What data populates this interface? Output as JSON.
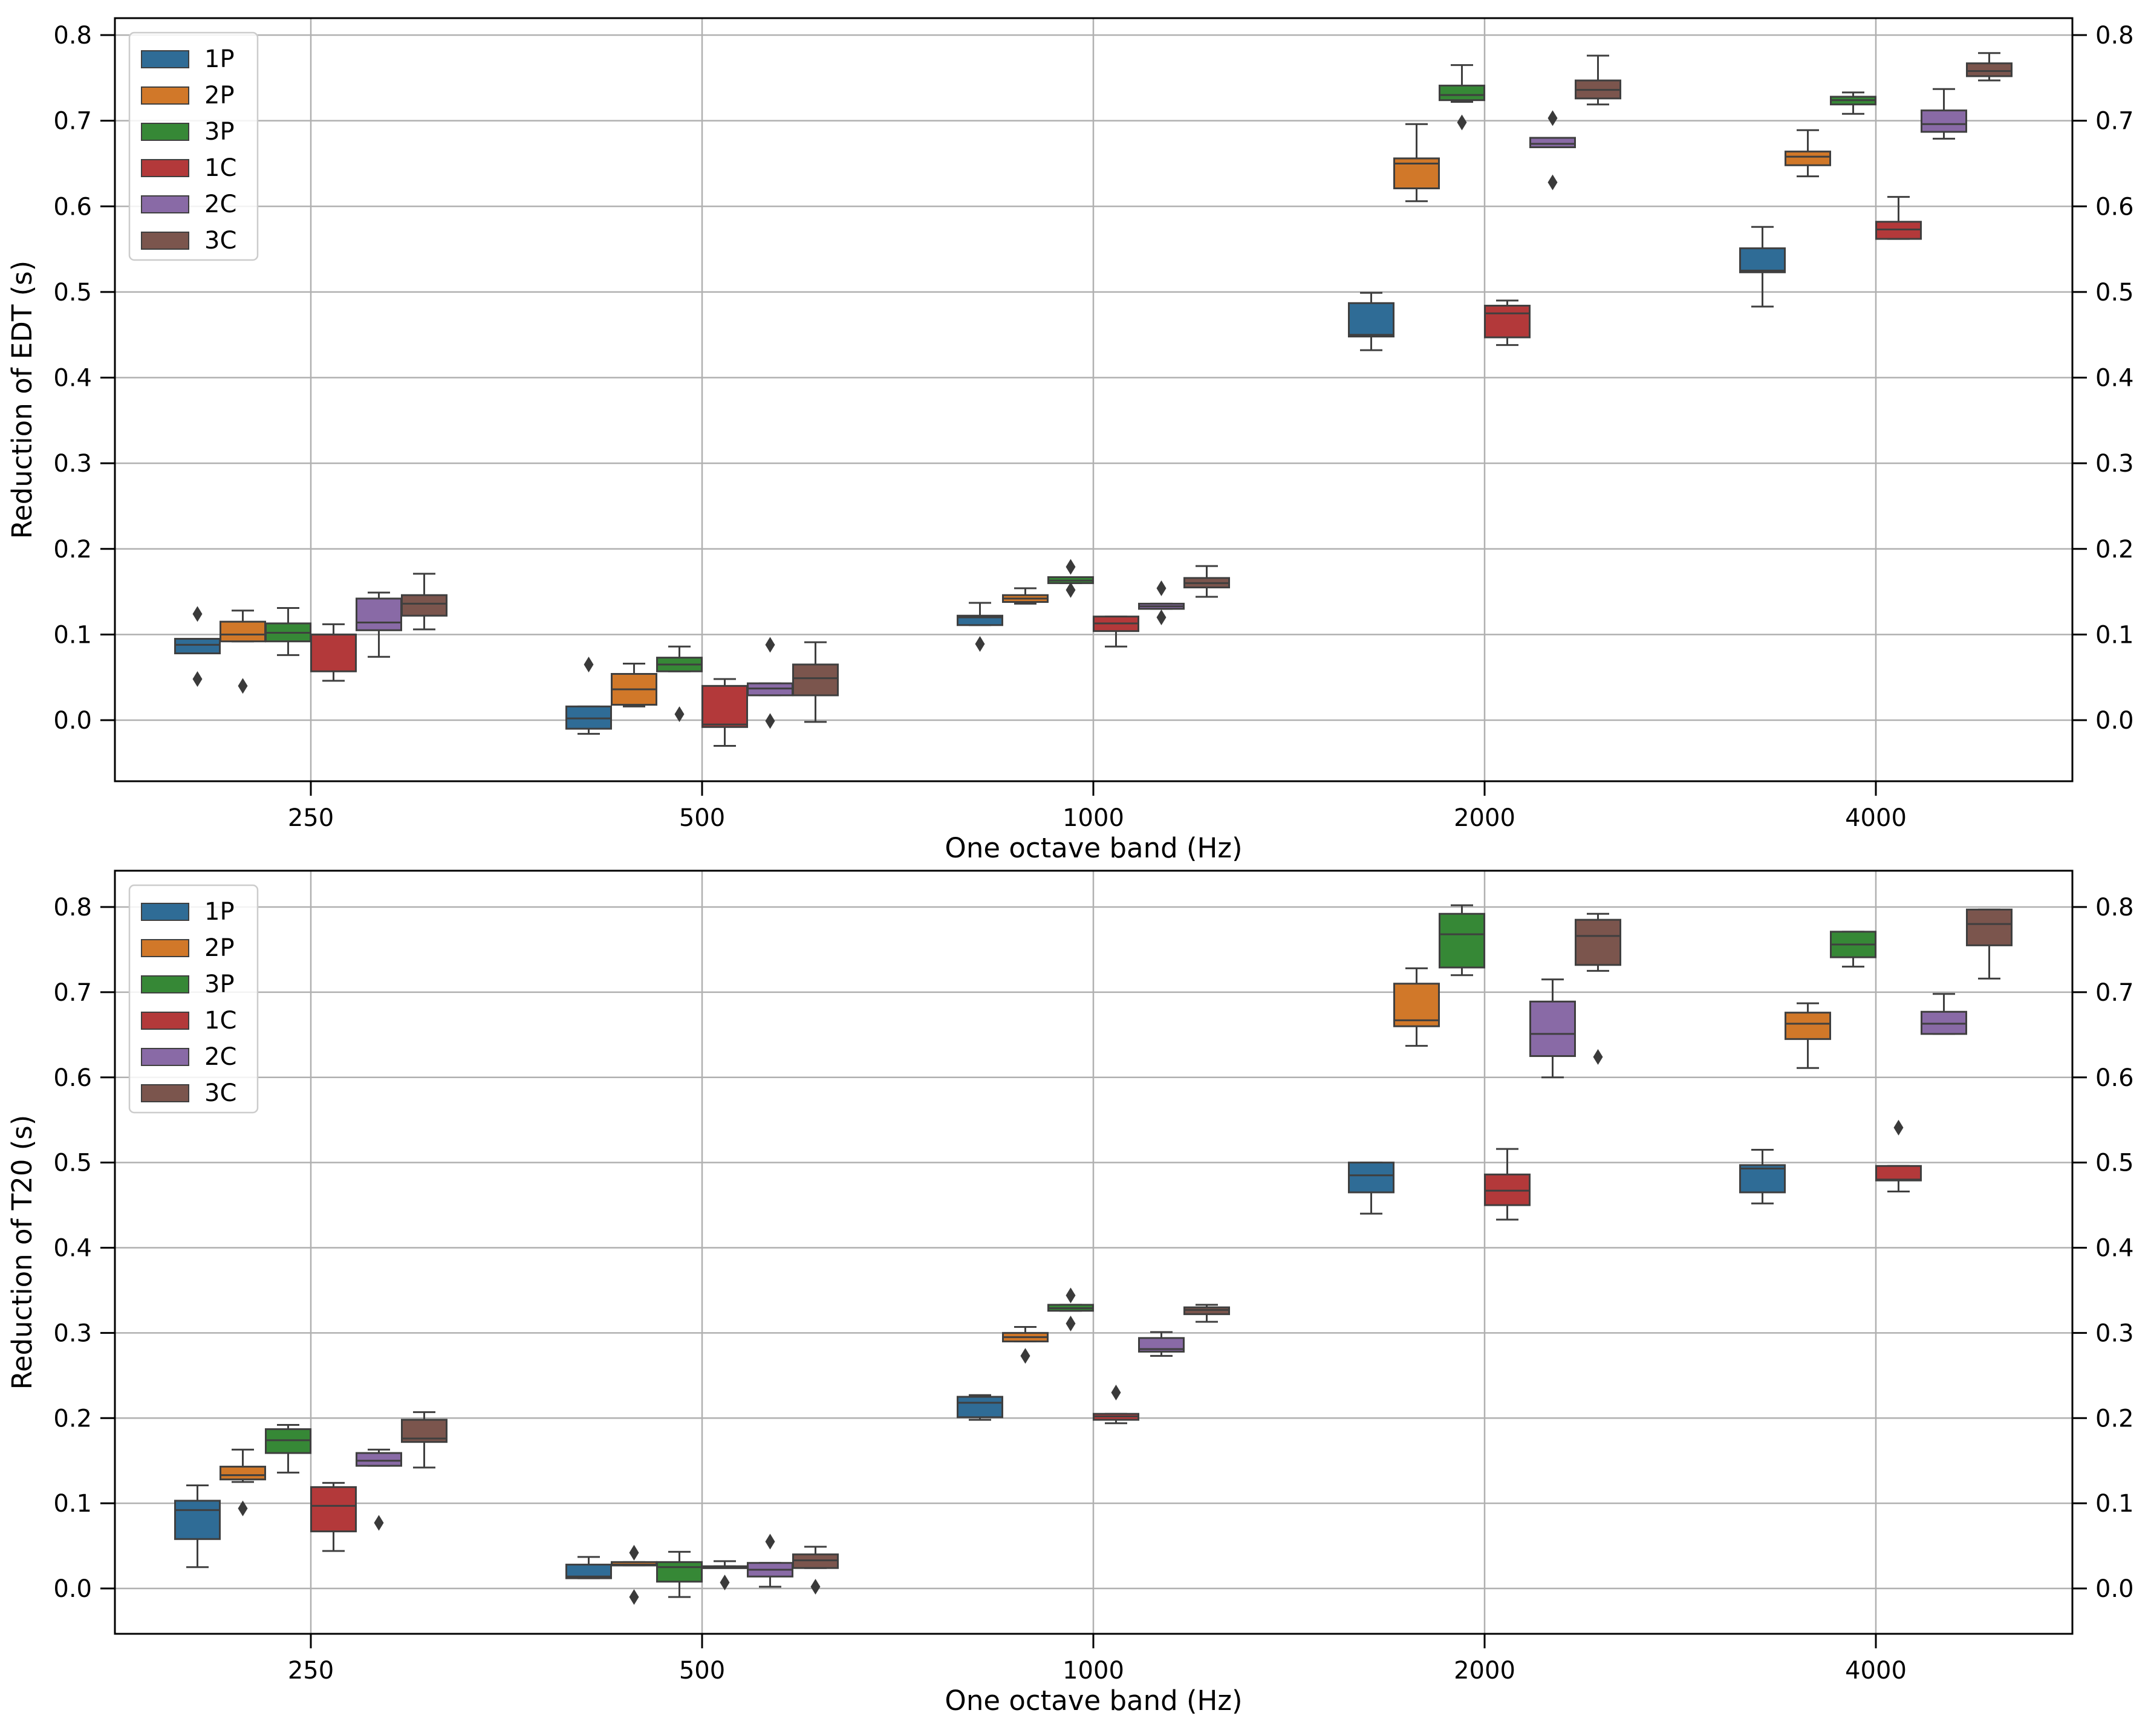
{
  "legend_labels": [
    "1P",
    "2P",
    "3P",
    "1C",
    "2C",
    "3C"
  ],
  "colors": [
    "#3274a1",
    "#e1812c",
    "#3a923a",
    "#c03d3e",
    "#9372b2",
    "#845b53"
  ],
  "chart_data": [
    {
      "type": "box",
      "title": "",
      "xlabel": "One octave band (Hz)",
      "ylabel": "Reduction of EDT (s)",
      "categories": [
        "250",
        "500",
        "1000",
        "2000",
        "4000"
      ],
      "yticks": [
        "0.0",
        "0.1",
        "0.2",
        "0.3",
        "0.4",
        "0.5",
        "0.6",
        "0.7",
        "0.8"
      ],
      "ylim": [
        -0.07,
        0.82
      ],
      "legend": "top-left",
      "grid": true,
      "series": [
        {
          "name": "1P",
          "boxes": [
            {
              "wlo": 0.078,
              "q1": 0.078,
              "med": 0.088,
              "q3": 0.095,
              "whi": 0.095,
              "fliers": [
                0.124,
                0.048
              ]
            },
            {
              "wlo": -0.016,
              "q1": -0.01,
              "med": 0.002,
              "q3": 0.016,
              "whi": 0.016,
              "fliers": [
                0.065
              ]
            },
            {
              "wlo": 0.111,
              "q1": 0.111,
              "med": 0.12,
              "q3": 0.122,
              "whi": 0.137,
              "fliers": [
                0.089
              ]
            },
            {
              "wlo": 0.432,
              "q1": 0.448,
              "med": 0.45,
              "q3": 0.487,
              "whi": 0.499,
              "fliers": []
            },
            {
              "wlo": 0.483,
              "q1": 0.523,
              "med": 0.525,
              "q3": 0.551,
              "whi": 0.576,
              "fliers": []
            }
          ]
        },
        {
          "name": "2P",
          "boxes": [
            {
              "wlo": 0.092,
              "q1": 0.092,
              "med": 0.1,
              "q3": 0.115,
              "whi": 0.128,
              "fliers": [
                0.04
              ]
            },
            {
              "wlo": 0.016,
              "q1": 0.018,
              "med": 0.036,
              "q3": 0.054,
              "whi": 0.066,
              "fliers": []
            },
            {
              "wlo": 0.136,
              "q1": 0.138,
              "med": 0.142,
              "q3": 0.146,
              "whi": 0.154,
              "fliers": []
            },
            {
              "wlo": 0.606,
              "q1": 0.621,
              "med": 0.65,
              "q3": 0.656,
              "whi": 0.696,
              "fliers": []
            },
            {
              "wlo": 0.635,
              "q1": 0.648,
              "med": 0.658,
              "q3": 0.664,
              "whi": 0.689,
              "fliers": []
            }
          ]
        },
        {
          "name": "3P",
          "boxes": [
            {
              "wlo": 0.076,
              "q1": 0.092,
              "med": 0.102,
              "q3": 0.113,
              "whi": 0.131,
              "fliers": []
            },
            {
              "wlo": 0.057,
              "q1": 0.057,
              "med": 0.065,
              "q3": 0.073,
              "whi": 0.086,
              "fliers": [
                0.007
              ]
            },
            {
              "wlo": 0.16,
              "q1": 0.16,
              "med": 0.163,
              "q3": 0.167,
              "whi": 0.167,
              "fliers": [
                0.179,
                0.152
              ]
            },
            {
              "wlo": 0.722,
              "q1": 0.724,
              "med": 0.73,
              "q3": 0.741,
              "whi": 0.765,
              "fliers": [
                0.698
              ]
            },
            {
              "wlo": 0.708,
              "q1": 0.719,
              "med": 0.724,
              "q3": 0.728,
              "whi": 0.733,
              "fliers": []
            }
          ]
        },
        {
          "name": "1C",
          "boxes": [
            {
              "wlo": 0.046,
              "q1": 0.057,
              "med": 0.1,
              "q3": 0.1,
              "whi": 0.112,
              "fliers": []
            },
            {
              "wlo": -0.03,
              "q1": -0.008,
              "med": -0.005,
              "q3": 0.04,
              "whi": 0.048,
              "fliers": []
            },
            {
              "wlo": 0.086,
              "q1": 0.104,
              "med": 0.113,
              "q3": 0.121,
              "whi": 0.121,
              "fliers": []
            },
            {
              "wlo": 0.438,
              "q1": 0.447,
              "med": 0.475,
              "q3": 0.484,
              "whi": 0.49,
              "fliers": []
            },
            {
              "wlo": 0.562,
              "q1": 0.562,
              "med": 0.573,
              "q3": 0.582,
              "whi": 0.611,
              "fliers": []
            }
          ]
        },
        {
          "name": "2C",
          "boxes": [
            {
              "wlo": 0.074,
              "q1": 0.105,
              "med": 0.114,
              "q3": 0.142,
              "whi": 0.149,
              "fliers": []
            },
            {
              "wlo": 0.029,
              "q1": 0.029,
              "med": 0.037,
              "q3": 0.043,
              "whi": 0.043,
              "fliers": [
                0.088,
                -0.001
              ]
            },
            {
              "wlo": 0.13,
              "q1": 0.13,
              "med": 0.133,
              "q3": 0.136,
              "whi": 0.136,
              "fliers": [
                0.154,
                0.12
              ]
            },
            {
              "wlo": 0.669,
              "q1": 0.669,
              "med": 0.673,
              "q3": 0.68,
              "whi": 0.68,
              "fliers": [
                0.703,
                0.628
              ]
            },
            {
              "wlo": 0.679,
              "q1": 0.687,
              "med": 0.696,
              "q3": 0.712,
              "whi": 0.737,
              "fliers": []
            }
          ]
        },
        {
          "name": "3C",
          "boxes": [
            {
              "wlo": 0.106,
              "q1": 0.122,
              "med": 0.136,
              "q3": 0.146,
              "whi": 0.171,
              "fliers": []
            },
            {
              "wlo": -0.002,
              "q1": 0.029,
              "med": 0.049,
              "q3": 0.065,
              "whi": 0.091,
              "fliers": []
            },
            {
              "wlo": 0.144,
              "q1": 0.155,
              "med": 0.16,
              "q3": 0.166,
              "whi": 0.18,
              "fliers": []
            },
            {
              "wlo": 0.719,
              "q1": 0.726,
              "med": 0.736,
              "q3": 0.747,
              "whi": 0.776,
              "fliers": []
            },
            {
              "wlo": 0.747,
              "q1": 0.752,
              "med": 0.758,
              "q3": 0.767,
              "whi": 0.779,
              "fliers": []
            }
          ]
        }
      ]
    },
    {
      "type": "box",
      "title": "",
      "xlabel": "One octave band (Hz)",
      "ylabel": "Reduction of T20 (s)",
      "categories": [
        "250",
        "500",
        "1000",
        "2000",
        "4000"
      ],
      "yticks": [
        "0.0",
        "0.1",
        "0.2",
        "0.3",
        "0.4",
        "0.5",
        "0.6",
        "0.7",
        "0.8"
      ],
      "ylim": [
        -0.05,
        0.84
      ],
      "legend": "top-left",
      "grid": true,
      "series": [
        {
          "name": "1P",
          "boxes": [
            {
              "wlo": 0.025,
              "q1": 0.058,
              "med": 0.092,
              "q3": 0.103,
              "whi": 0.121,
              "fliers": []
            },
            {
              "wlo": 0.012,
              "q1": 0.012,
              "med": 0.014,
              "q3": 0.028,
              "whi": 0.037,
              "fliers": []
            },
            {
              "wlo": 0.198,
              "q1": 0.201,
              "med": 0.218,
              "q3": 0.225,
              "whi": 0.227,
              "fliers": []
            },
            {
              "wlo": 0.44,
              "q1": 0.465,
              "med": 0.485,
              "q3": 0.5,
              "whi": 0.5,
              "fliers": []
            },
            {
              "wlo": 0.452,
              "q1": 0.465,
              "med": 0.493,
              "q3": 0.497,
              "whi": 0.515,
              "fliers": []
            }
          ]
        },
        {
          "name": "2P",
          "boxes": [
            {
              "wlo": 0.125,
              "q1": 0.128,
              "med": 0.133,
              "q3": 0.143,
              "whi": 0.163,
              "fliers": [
                0.094
              ]
            },
            {
              "wlo": 0.027,
              "q1": 0.027,
              "med": 0.028,
              "q3": 0.031,
              "whi": 0.031,
              "fliers": [
                0.042,
                -0.01
              ]
            },
            {
              "wlo": 0.29,
              "q1": 0.29,
              "med": 0.295,
              "q3": 0.3,
              "whi": 0.307,
              "fliers": [
                0.273
              ]
            },
            {
              "wlo": 0.637,
              "q1": 0.66,
              "med": 0.667,
              "q3": 0.71,
              "whi": 0.728,
              "fliers": []
            },
            {
              "wlo": 0.611,
              "q1": 0.645,
              "med": 0.663,
              "q3": 0.676,
              "whi": 0.687,
              "fliers": []
            }
          ]
        },
        {
          "name": "3P",
          "boxes": [
            {
              "wlo": 0.136,
              "q1": 0.159,
              "med": 0.174,
              "q3": 0.187,
              "whi": 0.192,
              "fliers": []
            },
            {
              "wlo": -0.01,
              "q1": 0.008,
              "med": 0.025,
              "q3": 0.031,
              "whi": 0.043,
              "fliers": []
            },
            {
              "wlo": 0.326,
              "q1": 0.326,
              "med": 0.329,
              "q3": 0.333,
              "whi": 0.333,
              "fliers": [
                0.344,
                0.311
              ]
            },
            {
              "wlo": 0.72,
              "q1": 0.729,
              "med": 0.768,
              "q3": 0.792,
              "whi": 0.802,
              "fliers": []
            },
            {
              "wlo": 0.73,
              "q1": 0.741,
              "med": 0.756,
              "q3": 0.771,
              "whi": 0.771,
              "fliers": []
            }
          ]
        },
        {
          "name": "1C",
          "boxes": [
            {
              "wlo": 0.044,
              "q1": 0.067,
              "med": 0.097,
              "q3": 0.119,
              "whi": 0.124,
              "fliers": []
            },
            {
              "wlo": 0.026,
              "q1": 0.026,
              "med": 0.026,
              "q3": 0.026,
              "whi": 0.032,
              "fliers": [
                0.007
              ]
            },
            {
              "wlo": 0.194,
              "q1": 0.198,
              "med": 0.202,
              "q3": 0.205,
              "whi": 0.205,
              "fliers": [
                0.23
              ]
            },
            {
              "wlo": 0.433,
              "q1": 0.45,
              "med": 0.467,
              "q3": 0.486,
              "whi": 0.516,
              "fliers": []
            },
            {
              "wlo": 0.466,
              "q1": 0.479,
              "med": 0.48,
              "q3": 0.496,
              "whi": 0.496,
              "fliers": [
                0.541
              ]
            }
          ]
        },
        {
          "name": "2C",
          "boxes": [
            {
              "wlo": 0.144,
              "q1": 0.144,
              "med": 0.15,
              "q3": 0.159,
              "whi": 0.163,
              "fliers": [
                0.077
              ]
            },
            {
              "wlo": 0.002,
              "q1": 0.014,
              "med": 0.022,
              "q3": 0.03,
              "whi": 0.03,
              "fliers": [
                0.055
              ]
            },
            {
              "wlo": 0.273,
              "q1": 0.278,
              "med": 0.281,
              "q3": 0.294,
              "whi": 0.301,
              "fliers": []
            },
            {
              "wlo": 0.6,
              "q1": 0.625,
              "med": 0.651,
              "q3": 0.689,
              "whi": 0.715,
              "fliers": []
            },
            {
              "wlo": 0.651,
              "q1": 0.651,
              "med": 0.663,
              "q3": 0.677,
              "whi": 0.698,
              "fliers": []
            }
          ]
        },
        {
          "name": "3C",
          "boxes": [
            {
              "wlo": 0.142,
              "q1": 0.172,
              "med": 0.176,
              "q3": 0.198,
              "whi": 0.207,
              "fliers": []
            },
            {
              "wlo": 0.024,
              "q1": 0.024,
              "med": 0.033,
              "q3": 0.04,
              "whi": 0.049,
              "fliers": [
                0.002
              ]
            },
            {
              "wlo": 0.313,
              "q1": 0.322,
              "med": 0.327,
              "q3": 0.33,
              "whi": 0.333,
              "fliers": []
            },
            {
              "wlo": 0.725,
              "q1": 0.732,
              "med": 0.766,
              "q3": 0.785,
              "whi": 0.792,
              "fliers": [
                0.624
              ]
            },
            {
              "wlo": 0.716,
              "q1": 0.755,
              "med": 0.78,
              "q3": 0.797,
              "whi": 0.797,
              "fliers": []
            }
          ]
        }
      ]
    }
  ]
}
